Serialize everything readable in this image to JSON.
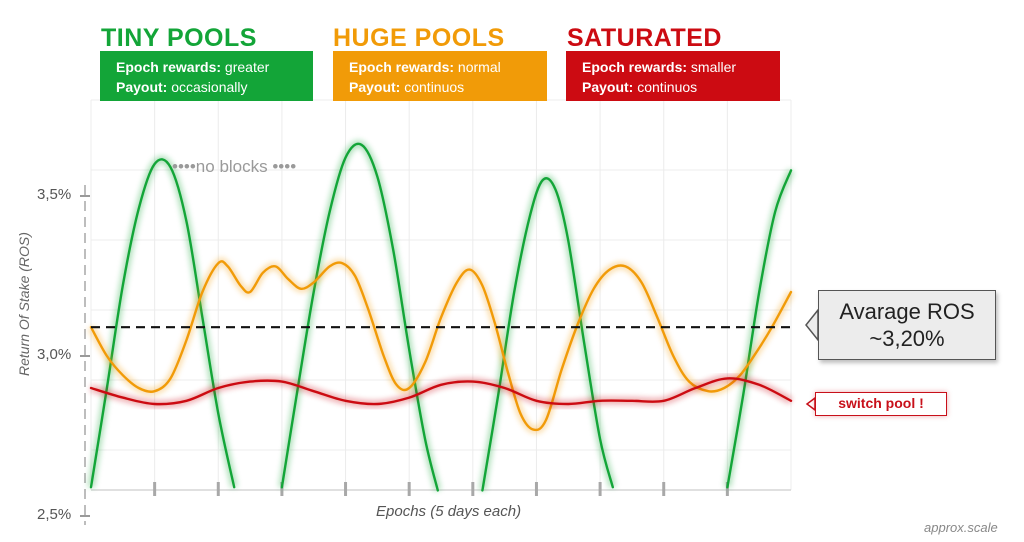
{
  "chart_data": {
    "type": "line",
    "xlabel": "Epochs (5 days each)",
    "ylabel": "Return Of Stake (ROS)",
    "ylim": [
      2.5,
      3.75
    ],
    "xlim": [
      0,
      22
    ],
    "y_ticks": [
      "3,5%",
      "3,0%",
      "2,5%"
    ],
    "y_tick_values": [
      3.5,
      3.0,
      2.5
    ],
    "x_tick_positions": [
      2,
      4,
      6,
      8,
      10,
      12,
      14,
      16,
      18,
      20
    ],
    "grid": true,
    "series": [
      {
        "name": "TINY POOLS",
        "color": "#13a538",
        "segments": [
          [
            [
              0,
              2.59
            ],
            [
              0.5,
              2.9
            ],
            [
              1,
              3.22
            ],
            [
              1.5,
              3.46
            ],
            [
              2,
              3.6
            ],
            [
              2.5,
              3.59
            ],
            [
              3,
              3.42
            ],
            [
              3.5,
              3.12
            ],
            [
              4,
              2.82
            ],
            [
              4.5,
              2.59
            ]
          ],
          [
            [
              6,
              2.59
            ],
            [
              6.5,
              2.9
            ],
            [
              7,
              3.2
            ],
            [
              7.5,
              3.45
            ],
            [
              8,
              3.62
            ],
            [
              8.5,
              3.66
            ],
            [
              9,
              3.56
            ],
            [
              9.5,
              3.33
            ],
            [
              10,
              3.02
            ],
            [
              10.5,
              2.74
            ],
            [
              10.9,
              2.58
            ]
          ],
          [
            [
              12.3,
              2.58
            ],
            [
              12.8,
              2.88
            ],
            [
              13.3,
              3.2
            ],
            [
              13.8,
              3.44
            ],
            [
              14.2,
              3.55
            ],
            [
              14.6,
              3.52
            ],
            [
              15,
              3.36
            ],
            [
              15.5,
              3.04
            ],
            [
              16,
              2.74
            ],
            [
              16.4,
              2.59
            ]
          ],
          [
            [
              20,
              2.59
            ],
            [
              20.5,
              2.88
            ],
            [
              21,
              3.2
            ],
            [
              21.5,
              3.45
            ],
            [
              22,
              3.58
            ]
          ]
        ]
      },
      {
        "name": "HUGE POOLS",
        "color": "#f19b08",
        "segments": [
          [
            [
              0,
              3.09
            ],
            [
              0.5,
              3.0
            ],
            [
              1,
              2.94
            ],
            [
              1.5,
              2.9
            ],
            [
              2,
              2.89
            ],
            [
              2.5,
              2.93
            ],
            [
              3,
              3.05
            ],
            [
              3.5,
              3.2
            ],
            [
              4,
              3.29
            ],
            [
              4.3,
              3.28
            ],
            [
              4.7,
              3.22
            ],
            [
              5,
              3.2
            ],
            [
              5.4,
              3.26
            ],
            [
              5.8,
              3.28
            ],
            [
              6.2,
              3.24
            ],
            [
              6.6,
              3.21
            ],
            [
              7,
              3.23
            ],
            [
              7.5,
              3.28
            ],
            [
              7.9,
              3.29
            ],
            [
              8.3,
              3.25
            ],
            [
              8.7,
              3.15
            ],
            [
              9.2,
              3.0
            ],
            [
              9.6,
              2.91
            ],
            [
              10,
              2.9
            ],
            [
              10.5,
              2.98
            ],
            [
              11,
              3.12
            ],
            [
              11.5,
              3.23
            ],
            [
              11.9,
              3.27
            ],
            [
              12.3,
              3.22
            ],
            [
              12.7,
              3.1
            ],
            [
              13.1,
              2.95
            ],
            [
              13.5,
              2.82
            ],
            [
              13.9,
              2.77
            ],
            [
              14.3,
              2.8
            ],
            [
              14.8,
              2.96
            ],
            [
              15.3,
              3.1
            ],
            [
              15.8,
              3.21
            ],
            [
              16.3,
              3.27
            ],
            [
              16.8,
              3.28
            ],
            [
              17.3,
              3.23
            ],
            [
              17.8,
              3.12
            ],
            [
              18.3,
              3.0
            ],
            [
              18.8,
              2.92
            ],
            [
              19.4,
              2.89
            ],
            [
              19.9,
              2.9
            ],
            [
              20.4,
              2.94
            ],
            [
              20.9,
              3.01
            ],
            [
              21.4,
              3.09
            ],
            [
              22,
              3.2
            ]
          ]
        ]
      },
      {
        "name": "SATURATED",
        "color": "#cc0b12",
        "segments": [
          [
            [
              0,
              2.9
            ],
            [
              1,
              2.87
            ],
            [
              2,
              2.85
            ],
            [
              3,
              2.86
            ],
            [
              4,
              2.9
            ],
            [
              5,
              2.92
            ],
            [
              6,
              2.92
            ],
            [
              7,
              2.89
            ],
            [
              8,
              2.86
            ],
            [
              9,
              2.85
            ],
            [
              10,
              2.87
            ],
            [
              11,
              2.91
            ],
            [
              12,
              2.92
            ],
            [
              13,
              2.9
            ],
            [
              14,
              2.86
            ],
            [
              15,
              2.85
            ],
            [
              16,
              2.86
            ],
            [
              17,
              2.86
            ],
            [
              18,
              2.86
            ],
            [
              19,
              2.9
            ],
            [
              20,
              2.93
            ],
            [
              21,
              2.91
            ],
            [
              22,
              2.86
            ]
          ]
        ]
      }
    ],
    "average_line": {
      "value": 3.09,
      "color": "#111111"
    }
  },
  "headers": [
    {
      "title": "TINY POOLS",
      "color": "#13a538",
      "rewards_label": "Epoch rewards:",
      "rewards_value": "greater",
      "payout_label": "Payout:",
      "payout_value": "occasionally"
    },
    {
      "title": "HUGE POOLS",
      "color": "#f19b08",
      "rewards_label": "Epoch rewards:",
      "rewards_value": "normal",
      "payout_label": "Payout:",
      "payout_value": "continuos"
    },
    {
      "title": "SATURATED",
      "color": "#cc0b12",
      "rewards_label": "Epoch rewards:",
      "rewards_value": "smaller",
      "payout_label": "Payout:",
      "payout_value": "continuos"
    }
  ],
  "annotations": {
    "no_blocks": "••••no blocks ••••",
    "average_line1": "Avarage ROS",
    "average_line2": "~3,20%",
    "switch_pool": "switch pool !"
  },
  "footnote": "approx.scale"
}
